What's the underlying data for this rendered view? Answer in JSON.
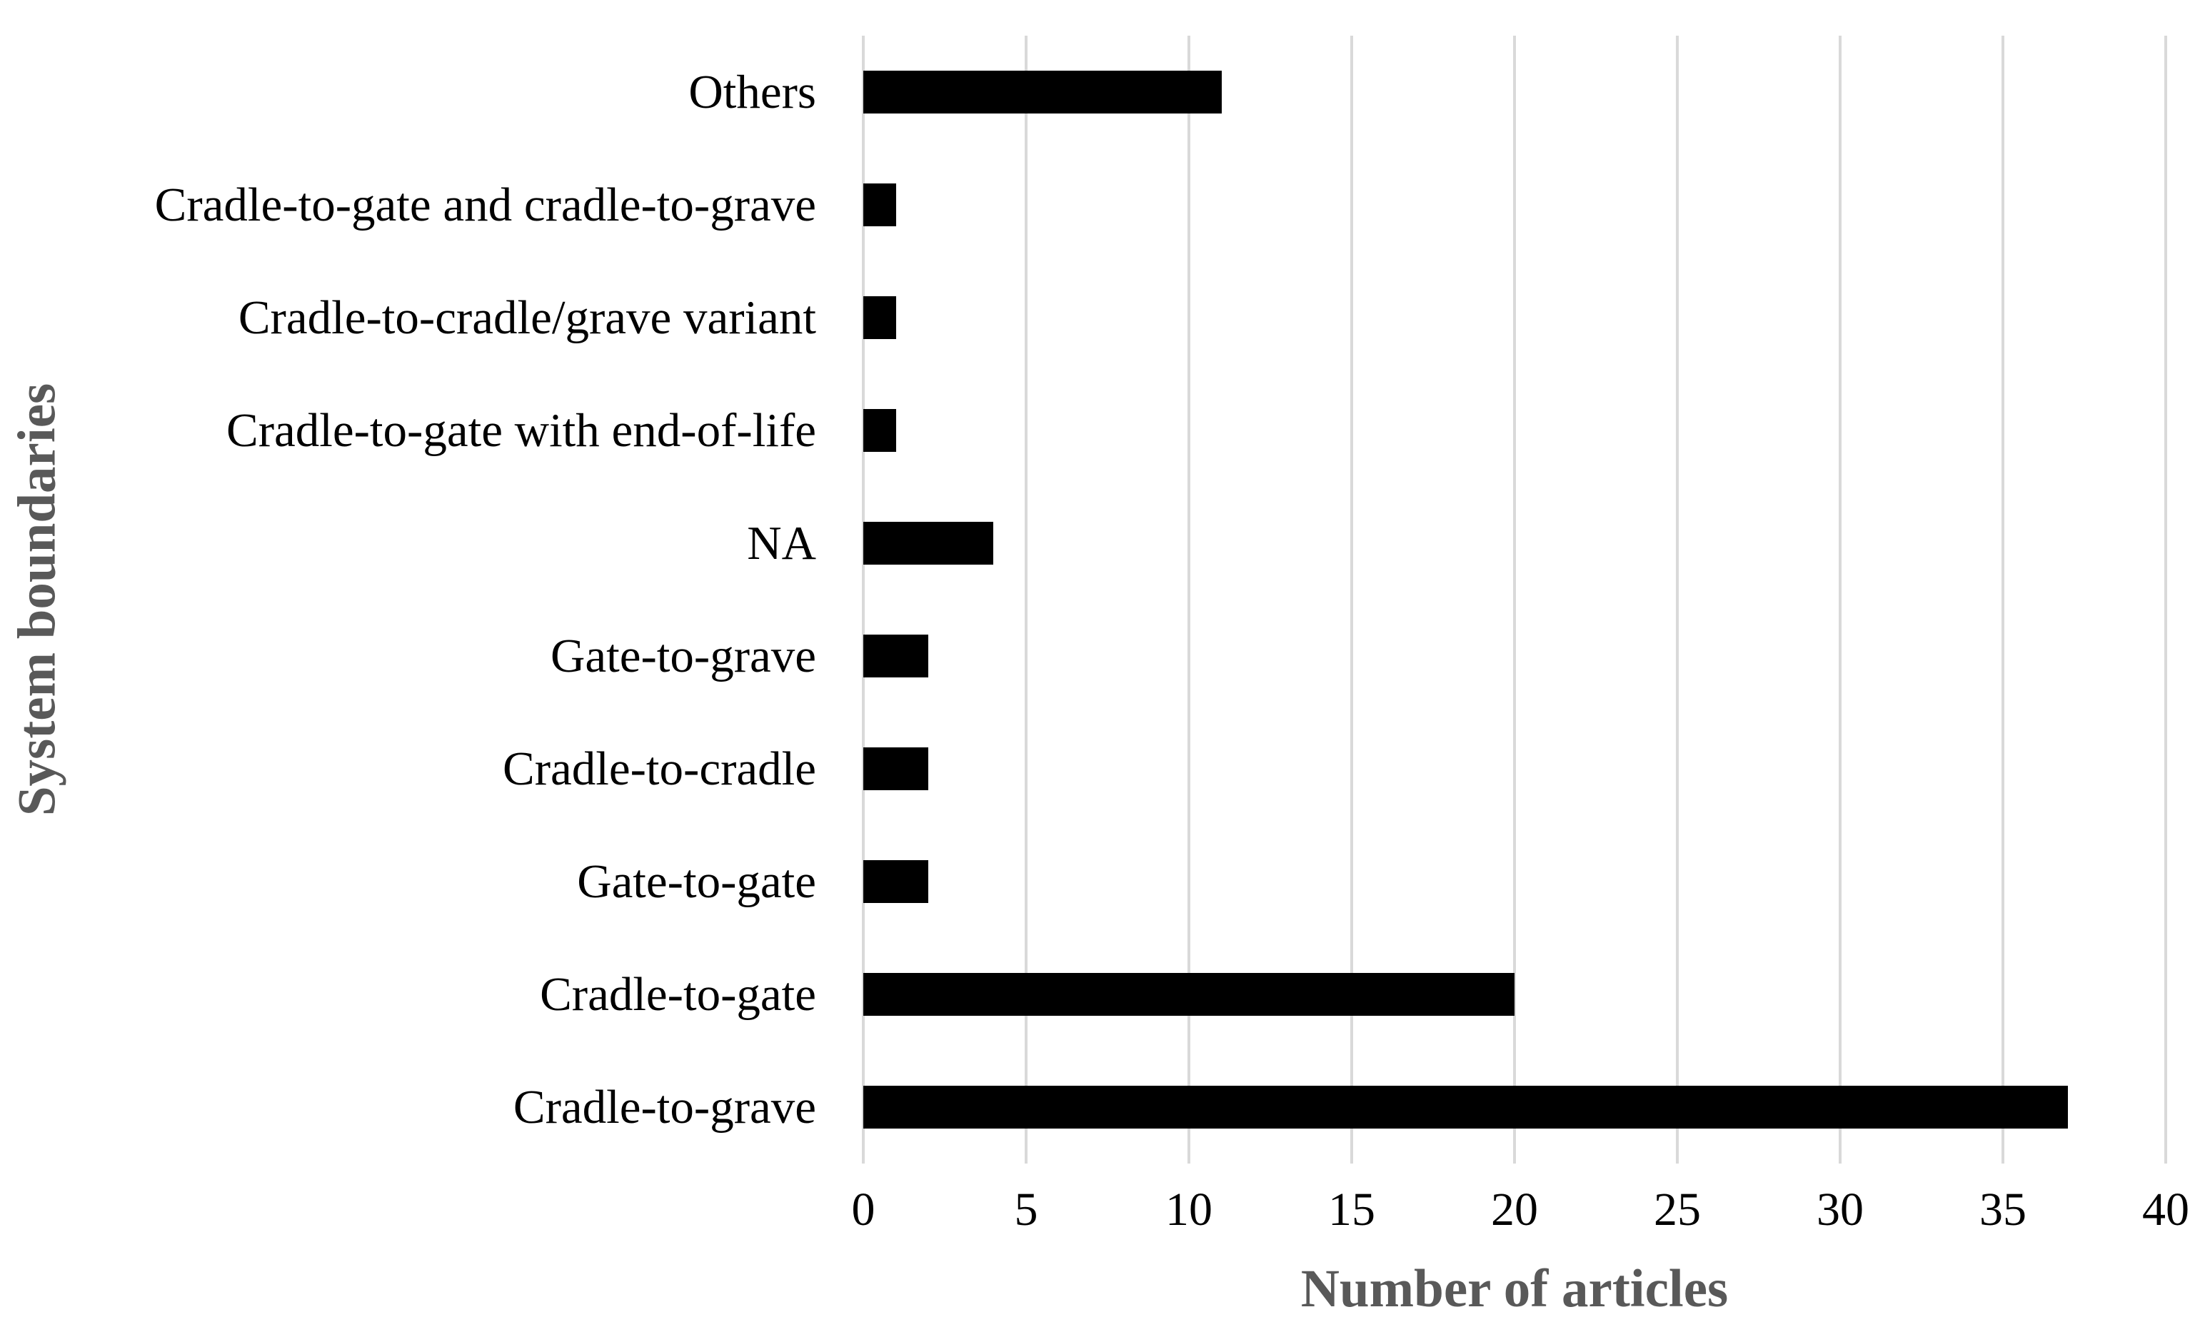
{
  "chart_data": {
    "type": "bar",
    "orientation": "horizontal",
    "categories": [
      "Others",
      "Cradle-to-gate and cradle-to-grave",
      "Cradle-to-cradle/grave variant",
      "Cradle-to-gate with end-of-life",
      "NA",
      "Gate-to-grave",
      "Cradle-to-cradle",
      "Gate-to-gate",
      "Cradle-to-gate",
      "Cradle-to-grave"
    ],
    "values": [
      11,
      1,
      1,
      1,
      4,
      2,
      2,
      2,
      20,
      37
    ],
    "title": "",
    "xlabel": "Number of articles",
    "ylabel": "System boundaries",
    "xlim": [
      0,
      40
    ],
    "xticks": [
      0,
      5,
      10,
      15,
      20,
      25,
      30,
      35,
      40
    ],
    "grid": true,
    "legend": "none",
    "colors": {
      "bar": "#000000",
      "gridline": "#d9d9d9",
      "tick_label": "#000000",
      "axis_title": "#595959",
      "background": "#ffffff"
    }
  }
}
